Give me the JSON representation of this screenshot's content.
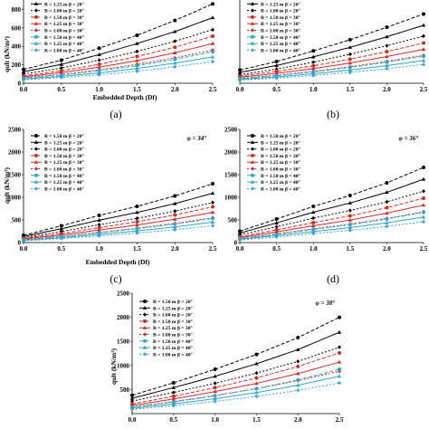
{
  "legend_labels": [
    "B = 1.50 m  β = 20°",
    "B = 1.25 m  β = 20°",
    "B = 1.00 m  β = 20°",
    "B = 1.50 m  β = 30°",
    "B = 1.25 m  β = 30°",
    "B = 1.00 m  β = 30°",
    "B = 1.50 m  β = 40°",
    "B = 1.25 m  β = 40°",
    "B = 1.00 m  β = 40°"
  ],
  "colors": {
    "beta20": "#000000",
    "beta30": "#d42a22",
    "beta40": "#2fa6cf"
  },
  "chart_data": [
    {
      "panel": "(a)",
      "type": "line",
      "phi_label": "",
      "xlabel": "Embedded Depth (Df)",
      "ylabel": "qult (kN/m²)",
      "x": [
        0,
        0.5,
        1.0,
        1.5,
        2.0,
        2.5
      ],
      "xlim": [
        0,
        2.5
      ],
      "xticks": [
        "0.0",
        "0.5",
        "1.0",
        "1.5",
        "2.0",
        "2.5"
      ],
      "ylim": [
        0,
        1000
      ],
      "yticks": [
        "0",
        "200",
        "400",
        "600",
        "800"
      ],
      "series": [
        {
          "name": "B = 1.50 m  β = 20°",
          "values": [
            150,
            250,
            380,
            520,
            680,
            860
          ]
        },
        {
          "name": "B = 1.25 m  β = 20°",
          "values": [
            125,
            205,
            310,
            430,
            560,
            710
          ]
        },
        {
          "name": "B = 1.00 m  β = 20°",
          "values": [
            100,
            165,
            250,
            345,
            455,
            580
          ]
        },
        {
          "name": "B = 1.50 m  β = 30°",
          "values": [
            80,
            135,
            205,
            290,
            390,
            510
          ]
        },
        {
          "name": "B = 1.25 m  β = 30°",
          "values": [
            70,
            115,
            175,
            245,
            330,
            430
          ]
        },
        {
          "name": "B = 1.00 m  β = 30°",
          "values": [
            60,
            95,
            145,
            205,
            275,
            360
          ]
        },
        {
          "name": "B = 1.50 m  β = 40°",
          "values": [
            55,
            90,
            135,
            190,
            260,
            340
          ]
        },
        {
          "name": "B = 1.25 m  β = 40°",
          "values": [
            45,
            75,
            112,
            160,
            218,
            285
          ]
        },
        {
          "name": "B = 1.00 m  β = 40°",
          "values": [
            38,
            62,
            92,
            130,
            178,
            235
          ]
        }
      ]
    },
    {
      "panel": "(b)",
      "type": "line",
      "phi_label": "",
      "xlabel": "",
      "ylabel": "",
      "x": [
        0,
        0.5,
        1.0,
        1.5,
        2.0,
        2.5
      ],
      "xlim": [
        0,
        2.5
      ],
      "xticks": [
        "0.0",
        "0.5",
        "1.0",
        "1.5",
        "2.0",
        "2.5"
      ],
      "ylim": [
        0,
        1400
      ],
      "yticks": [],
      "series": [
        {
          "name": "B = 1.50 m  β = 20°",
          "values": [
            200,
            330,
            490,
            660,
            850,
            1050
          ]
        },
        {
          "name": "B = 1.25 m  β = 20°",
          "values": [
            165,
            270,
            400,
            545,
            705,
            880
          ]
        },
        {
          "name": "B = 1.00 m  β = 20°",
          "values": [
            130,
            215,
            320,
            440,
            570,
            715
          ]
        },
        {
          "name": "B = 1.50 m  β = 30°",
          "values": [
            110,
            180,
            265,
            365,
            480,
            610
          ]
        },
        {
          "name": "B = 1.25 m  β = 30°",
          "values": [
            92,
            150,
            222,
            307,
            405,
            515
          ]
        },
        {
          "name": "B = 1.00 m  β = 30°",
          "values": [
            75,
            122,
            182,
            252,
            333,
            425
          ]
        },
        {
          "name": "B = 1.50 m  β = 40°",
          "values": [
            70,
            115,
            172,
            240,
            320,
            410
          ]
        },
        {
          "name": "B = 1.25 m  β = 40°",
          "values": [
            58,
            96,
            144,
            200,
            268,
            345
          ]
        },
        {
          "name": "B = 1.00 m  β = 40°",
          "values": [
            47,
            78,
            117,
            164,
            220,
            285
          ]
        }
      ]
    },
    {
      "panel": "(c)",
      "type": "line",
      "phi_label": "φ = 34°",
      "xlabel": "Embedded Depth (Df)",
      "ylabel": "qult (kN/m²)",
      "x": [
        0,
        0.5,
        1.0,
        1.5,
        2.0,
        2.5
      ],
      "xlim": [
        0,
        2.5
      ],
      "xticks": [
        "0.0",
        "0.5",
        "1.0",
        "1.5",
        "2.0",
        "2.5"
      ],
      "ylim": [
        0,
        2500
      ],
      "yticks": [
        "0",
        "500",
        "1000",
        "1500",
        "2000",
        "2500"
      ],
      "series": [
        {
          "name": "B = 1.50 m  β = 20°",
          "values": [
            160,
            370,
            600,
            800,
            1030,
            1300
          ]
        },
        {
          "name": "B = 1.25 m  β = 20°",
          "values": [
            135,
            305,
            495,
            665,
            860,
            1090
          ]
        },
        {
          "name": "B = 1.00 m  β = 20°",
          "values": [
            110,
            245,
            395,
            535,
            695,
            885
          ]
        },
        {
          "name": "B = 1.50 m  β = 30°",
          "values": [
            95,
            200,
            330,
            460,
            610,
            790
          ]
        },
        {
          "name": "B = 1.25 m  β = 30°",
          "values": [
            80,
            168,
            277,
            387,
            515,
            668
          ]
        },
        {
          "name": "B = 1.00 m  β = 30°",
          "values": [
            66,
            138,
            226,
            317,
            423,
            550
          ]
        },
        {
          "name": "B = 1.50 m  β = 40°",
          "values": [
            60,
            130,
            215,
            305,
            410,
            535
          ]
        },
        {
          "name": "B = 1.25 m  β = 40°",
          "values": [
            50,
            108,
            180,
            256,
            345,
            452
          ]
        },
        {
          "name": "B = 1.00 m  β = 40°",
          "values": [
            41,
            88,
            147,
            210,
            284,
            372
          ]
        }
      ]
    },
    {
      "panel": "(d)",
      "type": "line",
      "phi_label": "φ = 36°",
      "xlabel": "",
      "ylabel": "",
      "x": [
        0,
        0.5,
        1.0,
        1.5,
        2.0,
        2.5
      ],
      "xlim": [
        0,
        2.5
      ],
      "xticks": [
        "0.0",
        "0.5",
        "1.0",
        "1.5",
        "2.0",
        "2.5"
      ],
      "ylim": [
        0,
        2500
      ],
      "yticks": [
        "0",
        "500",
        "1000",
        "1500",
        "2000",
        "2500"
      ],
      "series": [
        {
          "name": "B = 1.50 m  β = 20°",
          "values": [
            250,
            520,
            800,
            1040,
            1320,
            1660
          ]
        },
        {
          "name": "B = 1.25 m  β = 20°",
          "values": [
            210,
            435,
            670,
            875,
            1110,
            1400
          ]
        },
        {
          "name": "B = 1.00 m  β = 20°",
          "values": [
            170,
            350,
            540,
            708,
            900,
            1135
          ]
        },
        {
          "name": "B = 1.50 m  β = 30°",
          "values": [
            130,
            280,
            440,
            590,
            770,
            980
          ]
        },
        {
          "name": "B = 1.25 m  β = 30°",
          "values": [
            110,
            236,
            371,
            498,
            650,
            828
          ]
        },
        {
          "name": "B = 1.00 m  β = 30°",
          "values": [
            90,
            194,
            304,
            408,
            533,
            680
          ]
        },
        {
          "name": "B = 1.50 m  β = 40°",
          "values": [
            85,
            180,
            290,
            395,
            520,
            670
          ]
        },
        {
          "name": "B = 1.25 m  β = 40°",
          "values": [
            71,
            151,
            243,
            331,
            437,
            563
          ]
        },
        {
          "name": "B = 1.00 m  β = 40°",
          "values": [
            58,
            123,
            198,
            270,
            357,
            460
          ]
        }
      ]
    },
    {
      "panel": "",
      "type": "line",
      "phi_label": "φ = 38°",
      "xlabel": "",
      "ylabel": "qult (kN/m²)",
      "x": [
        0,
        0.5,
        1.0,
        1.5,
        2.0,
        2.5
      ],
      "xlim": [
        0,
        2.5
      ],
      "xticks": [
        "0.0",
        "0.5",
        "1.0",
        "1.5",
        "2.0",
        "2.5"
      ],
      "ylim": [
        0,
        2500
      ],
      "yticks": [
        "500",
        "1000",
        "1500",
        "2000",
        "2500"
      ],
      "series": [
        {
          "name": "B = 1.50 m  β = 20°",
          "values": [
            380,
            640,
            920,
            1230,
            1580,
            2000
          ]
        },
        {
          "name": "B = 1.25 m  β = 20°",
          "values": [
            320,
            540,
            775,
            1035,
            1330,
            1690
          ]
        },
        {
          "name": "B = 1.00 m  β = 20°",
          "values": [
            260,
            440,
            630,
            842,
            1085,
            1380
          ]
        },
        {
          "name": "B = 1.50 m  β = 30°",
          "values": [
            200,
            360,
            540,
            740,
            980,
            1260
          ]
        },
        {
          "name": "B = 1.25 m  β = 30°",
          "values": [
            170,
            305,
            458,
            628,
            832,
            1070
          ]
        },
        {
          "name": "B = 1.00 m  β = 30°",
          "values": [
            140,
            250,
            376,
            516,
            684,
            880
          ]
        },
        {
          "name": "B = 1.50 m  β = 40°",
          "values": [
            130,
            240,
            370,
            520,
            700,
            920
          ]
        },
        {
          "name": "B = 1.25 m  β = 40°",
          "values": [
            108,
            200,
            310,
            437,
            590,
            777
          ]
        },
        {
          "name": "B = 1.00 m  β = 40°",
          "values": [
            88,
            163,
            253,
            357,
            483,
            637
          ]
        }
      ]
    }
  ]
}
